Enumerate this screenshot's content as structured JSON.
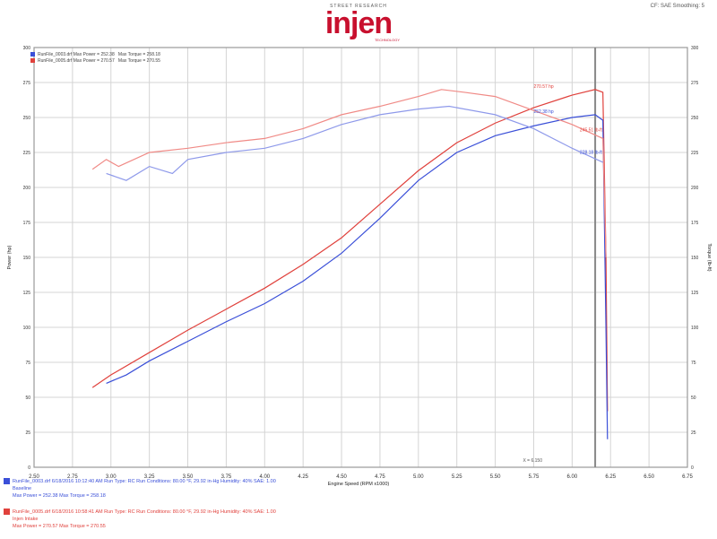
{
  "header": {
    "brand_top": "STREET RESEARCH",
    "brand": "injen",
    "brand_sub": "TECHNOLOGY",
    "corner": "CF: SAE  Smoothing: 5"
  },
  "colors": {
    "red": "#e0413c",
    "blue": "#3a4fd8",
    "red_light": "#f08a86",
    "blue_light": "#8e99ea",
    "grid": "#d4d4d4"
  },
  "legend": [
    {
      "text": "RunFile_0003.drf  Max Power = 252.38",
      "torque": "Max Torque = 258.18",
      "color": "#3a4fd8"
    },
    {
      "text": "RunFile_0005.drf  Max Power = 270.57",
      "torque": "Max Torque = 270.55",
      "color": "#e0413c"
    }
  ],
  "annotations": {
    "red_power": "270.57 hp",
    "blue_power": "252.38 hp",
    "red_torque": "245.51 lb-ft",
    "blue_torque": "228.18 lb-ft",
    "x_marker": "X = 6.150"
  },
  "footer": [
    {
      "line1": "RunFile_0003.drf  6/18/2016 10:12:40 AM  Run Type: RC  Run Conditions: 80.00 °F, 29.92 in-Hg  Humidity: 40%  SAE: 1.00",
      "line2": "Baseline",
      "line3": "Max Power = 252.38   Max Torque = 258.18",
      "color": "#3a4fd8"
    },
    {
      "line1": "RunFile_0005.drf  6/18/2016 10:58:41 AM  Run Type: RC  Run Conditions: 80.00 °F, 29.92 in-Hg  Humidity: 40%  SAE: 1.00",
      "line2": "Injen Intake",
      "line3": "Max Power = 270.57   Max Torque = 270.55",
      "color": "#e0413c"
    }
  ],
  "chart_data": {
    "type": "line",
    "xlabel": "Engine Speed (RPM x1000)",
    "ylabel": "Power (hp)",
    "y2label": "Torque (lb-ft)",
    "xlim": [
      2.5,
      6.75
    ],
    "ylim": [
      0,
      300
    ],
    "x_ticks": [
      "2.50",
      "2.75",
      "3.00",
      "3.25",
      "3.50",
      "3.75",
      "4.00",
      "4.25",
      "4.50",
      "4.75",
      "5.00",
      "5.25",
      "5.50",
      "5.75",
      "6.00",
      "6.25",
      "6.50",
      "6.75"
    ],
    "y_ticks": [
      "0",
      "25",
      "50",
      "75",
      "100",
      "125",
      "150",
      "175",
      "200",
      "225",
      "250",
      "275",
      "300"
    ],
    "grid": true,
    "legend_position": "top-left",
    "series": [
      {
        "name": "RunFile_0005.drf Power",
        "color": "#e0413c",
        "x": [
          2.88,
          3.0,
          3.25,
          3.5,
          3.75,
          4.0,
          4.25,
          4.5,
          4.75,
          5.0,
          5.25,
          5.5,
          5.75,
          6.0,
          6.15,
          6.2,
          6.22,
          6.23
        ],
        "y": [
          57,
          66,
          82,
          98,
          113,
          128,
          145,
          164,
          188,
          212,
          232,
          246,
          257,
          266,
          270,
          268,
          150,
          40
        ]
      },
      {
        "name": "RunFile_0003.drf Power",
        "color": "#3a4fd8",
        "x": [
          2.97,
          3.1,
          3.25,
          3.5,
          3.75,
          4.0,
          4.25,
          4.5,
          4.75,
          5.0,
          5.25,
          5.5,
          5.75,
          6.0,
          6.15,
          6.2,
          6.22,
          6.23
        ],
        "y": [
          60,
          66,
          76,
          90,
          104,
          117,
          133,
          153,
          178,
          205,
          225,
          237,
          244,
          250,
          252,
          248,
          100,
          20
        ]
      },
      {
        "name": "RunFile_0005.drf Torque",
        "color": "#f08a86",
        "x": [
          2.88,
          2.97,
          3.05,
          3.25,
          3.5,
          3.75,
          4.0,
          4.25,
          4.5,
          4.75,
          5.0,
          5.15,
          5.3,
          5.5,
          5.75,
          6.0,
          6.2,
          6.22
        ],
        "y": [
          213,
          220,
          215,
          225,
          228,
          232,
          235,
          242,
          252,
          258,
          265,
          270,
          268,
          265,
          255,
          245,
          235,
          150
        ]
      },
      {
        "name": "RunFile_0003.drf Torque",
        "color": "#8e99ea",
        "x": [
          2.97,
          3.1,
          3.25,
          3.4,
          3.5,
          3.75,
          4.0,
          4.25,
          4.5,
          4.75,
          5.0,
          5.2,
          5.5,
          5.75,
          6.0,
          6.2
        ],
        "y": [
          210,
          205,
          215,
          210,
          220,
          225,
          228,
          235,
          245,
          252,
          256,
          258,
          252,
          242,
          228,
          218
        ]
      }
    ]
  }
}
